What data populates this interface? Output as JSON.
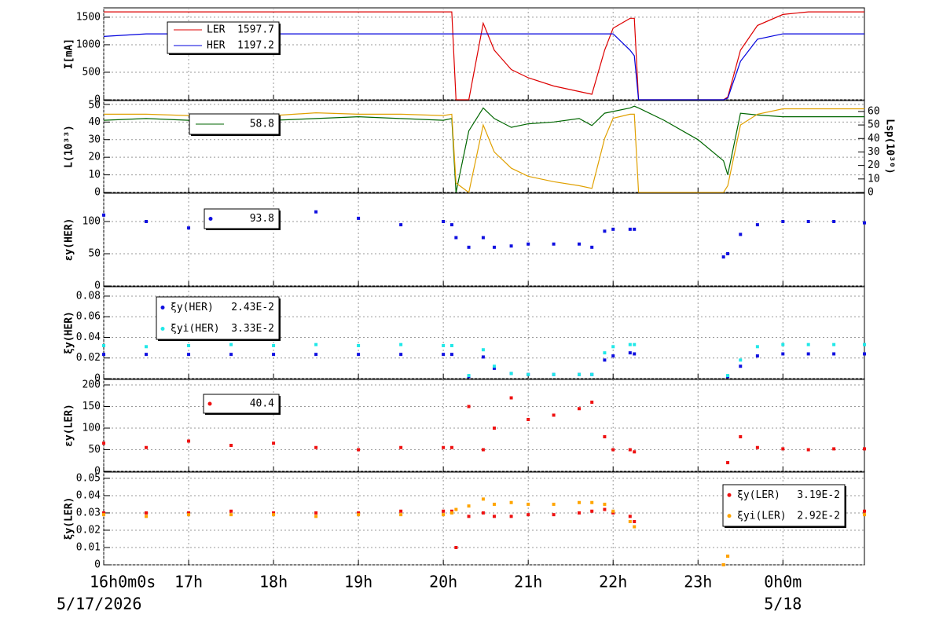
{
  "time_axis": {
    "x": [
      16,
      16.5,
      17,
      17.5,
      18,
      18.5,
      19,
      19.5,
      20,
      20.1,
      20.15,
      20.3,
      20.47,
      20.6,
      20.8,
      21,
      21.3,
      21.6,
      21.75,
      21.9,
      22,
      22.2,
      22.25,
      22.3,
      22.6,
      23,
      23.3,
      23.35,
      23.5,
      23.7,
      24,
      24.3,
      24.6,
      24.96
    ],
    "xlim": [
      16,
      24.96
    ],
    "xticks": [
      {
        "value": 16,
        "label": "16h0m0s"
      },
      {
        "value": 17,
        "label": "17h"
      },
      {
        "value": 18,
        "label": "18h"
      },
      {
        "value": 19,
        "label": "19h"
      },
      {
        "value": 20,
        "label": "20h"
      },
      {
        "value": 21,
        "label": "21h"
      },
      {
        "value": 22,
        "label": "22h"
      },
      {
        "value": 23,
        "label": "23h"
      },
      {
        "value": 24,
        "label": "0h0m"
      }
    ],
    "date_labels": [
      {
        "value": 16,
        "label": "5/17/2026"
      },
      {
        "value": 24,
        "label": "5/18"
      }
    ],
    "grid": true
  },
  "chart_data": [
    {
      "type": "line",
      "ylabel": "I[mA]",
      "ylim": [
        0,
        1670
      ],
      "yticks": [
        0,
        500,
        1000,
        1500
      ],
      "series": [
        {
          "name": "LER",
          "legend_value": 1597.7,
          "color": "#dd0000",
          "values": [
            1597,
            1597,
            1597,
            1597,
            1597,
            1597,
            1597,
            1597,
            1597,
            1597,
            0,
            0,
            1390,
            900,
            550,
            400,
            250,
            150,
            100,
            900,
            1300,
            1480,
            1480,
            0,
            0,
            0,
            0,
            50,
            900,
            1350,
            1550,
            1597,
            1597,
            1597
          ]
        },
        {
          "name": "HER",
          "legend_value": 1197.2,
          "color": "#0000dd",
          "values": [
            1150,
            1197,
            1197,
            1197,
            1197,
            1197,
            1197,
            1197,
            1197,
            1197,
            1197,
            1197,
            1197,
            1197,
            1197,
            1197,
            1197,
            1197,
            1197,
            1197,
            1197,
            900,
            800,
            0,
            0,
            0,
            0,
            30,
            700,
            1100,
            1197,
            1197,
            1197,
            1197
          ]
        }
      ]
    },
    {
      "type": "line",
      "ylabel": "L(10³³)",
      "y2label": "Lsp(10³⁰)",
      "ylim": [
        0,
        52.2
      ],
      "yticks": [
        0,
        10,
        20,
        30,
        40,
        50
      ],
      "y2lim": [
        0,
        68.1
      ],
      "y2ticks": [
        0,
        10,
        20,
        30,
        40,
        50,
        60
      ],
      "series": [
        {
          "legend_value": 58.8,
          "color": "#006600",
          "values": [
            41,
            42,
            41,
            42,
            41,
            42,
            43,
            42,
            41,
            42,
            0,
            35,
            48,
            42,
            37,
            39,
            40,
            42,
            38,
            45,
            46,
            48,
            49,
            48,
            41,
            30,
            18,
            10,
            45,
            44,
            43,
            43,
            43,
            43
          ]
        },
        {
          "axis": "y2",
          "color": "#e0a000",
          "values": [
            58,
            58,
            57,
            58,
            57,
            59,
            58,
            58,
            57,
            58,
            7,
            0,
            50,
            30,
            18,
            12,
            8,
            5,
            3,
            40,
            55,
            58,
            58,
            0,
            0,
            0,
            0,
            5,
            50,
            58,
            62,
            62,
            62,
            62
          ]
        }
      ]
    },
    {
      "type": "scatter",
      "ylabel": "εy(HER)",
      "ylim": [
        0,
        143.9
      ],
      "yticks": [
        0,
        50,
        100
      ],
      "series": [
        {
          "legend_value": 93.8,
          "color": "#1010e0",
          "values": [
            110,
            100,
            90,
            105,
            100,
            115,
            105,
            95,
            100,
            95,
            75,
            60,
            75,
            60,
            62,
            65,
            65,
            65,
            60,
            85,
            88,
            88,
            88,
            null,
            null,
            null,
            45,
            50,
            80,
            95,
            100,
            100,
            100,
            98
          ]
        }
      ]
    },
    {
      "type": "scatter",
      "ylabel": "ξy(HER)",
      "ylim": [
        0,
        0.0891
      ],
      "yticks": [
        0,
        0.02,
        0.04,
        0.06,
        0.08
      ],
      "series": [
        {
          "name": "ξy(HER)",
          "legend_value": "2.43E-2",
          "color": "#1010e0",
          "values": [
            0.0235,
            0.0235,
            0.0235,
            0.0235,
            0.0235,
            0.0235,
            0.0235,
            0.0235,
            0.0235,
            0.0235,
            null,
            0.002,
            0.021,
            0.01,
            0.005,
            0.004,
            0.004,
            0.004,
            0.004,
            0.018,
            0.022,
            0.025,
            0.024,
            null,
            null,
            null,
            null,
            0.002,
            0.012,
            0.022,
            0.024,
            0.024,
            0.024,
            0.024
          ]
        },
        {
          "name": "ξyi(HER)",
          "legend_value": "3.33E-2",
          "color": "#20e8e8",
          "values": [
            0.032,
            0.031,
            0.032,
            0.033,
            0.032,
            0.033,
            0.032,
            0.033,
            0.032,
            0.032,
            null,
            0.003,
            0.028,
            0.012,
            0.005,
            0.004,
            0.004,
            0.004,
            0.004,
            0.025,
            0.031,
            0.033,
            0.033,
            null,
            null,
            null,
            null,
            0.003,
            0.018,
            0.031,
            0.033,
            0.033,
            0.033,
            0.033
          ]
        }
      ]
    },
    {
      "type": "scatter",
      "ylabel": "εy(LER)",
      "ylim": [
        0,
        212.7
      ],
      "yticks": [
        0,
        50,
        100,
        150,
        200
      ],
      "series": [
        {
          "legend_value": 40.4,
          "color": "#ee1111",
          "values": [
            65,
            55,
            70,
            60,
            65,
            55,
            50,
            55,
            55,
            55,
            null,
            150,
            50,
            100,
            170,
            120,
            130,
            145,
            160,
            80,
            50,
            50,
            45,
            null,
            null,
            null,
            null,
            20,
            80,
            55,
            52,
            50,
            52,
            52
          ]
        }
      ]
    },
    {
      "type": "scatter",
      "ylabel": "ξy(LER)",
      "ylim": [
        0,
        0.0536
      ],
      "yticks": [
        0,
        0.01,
        0.02,
        0.03,
        0.04,
        0.05
      ],
      "series": [
        {
          "name": "ξy(LER)",
          "legend_value": "3.19E-2",
          "color": "#ee1111",
          "values": [
            0.03,
            0.03,
            0.03,
            0.031,
            0.03,
            0.03,
            0.03,
            0.031,
            0.031,
            0.031,
            0.01,
            0.028,
            0.03,
            0.028,
            0.028,
            0.029,
            0.029,
            0.03,
            0.031,
            0.032,
            0.03,
            0.028,
            0.025,
            null,
            null,
            null,
            0,
            0.005,
            0.028,
            0.031,
            0.031,
            0.031,
            0.031,
            0.031
          ]
        },
        {
          "name": "ξyi(LER)",
          "legend_value": "2.92E-2",
          "color": "#ffa500",
          "values": [
            0.029,
            0.028,
            0.029,
            0.029,
            0.029,
            0.028,
            0.029,
            0.029,
            0.029,
            0.03,
            0.032,
            0.034,
            0.038,
            0.035,
            0.036,
            0.035,
            0.035,
            0.036,
            0.036,
            0.035,
            0.031,
            0.025,
            0.022,
            null,
            null,
            null,
            0,
            0.005,
            0.024,
            0.029,
            0.029,
            0.029,
            0.029,
            0.029
          ]
        }
      ]
    }
  ]
}
